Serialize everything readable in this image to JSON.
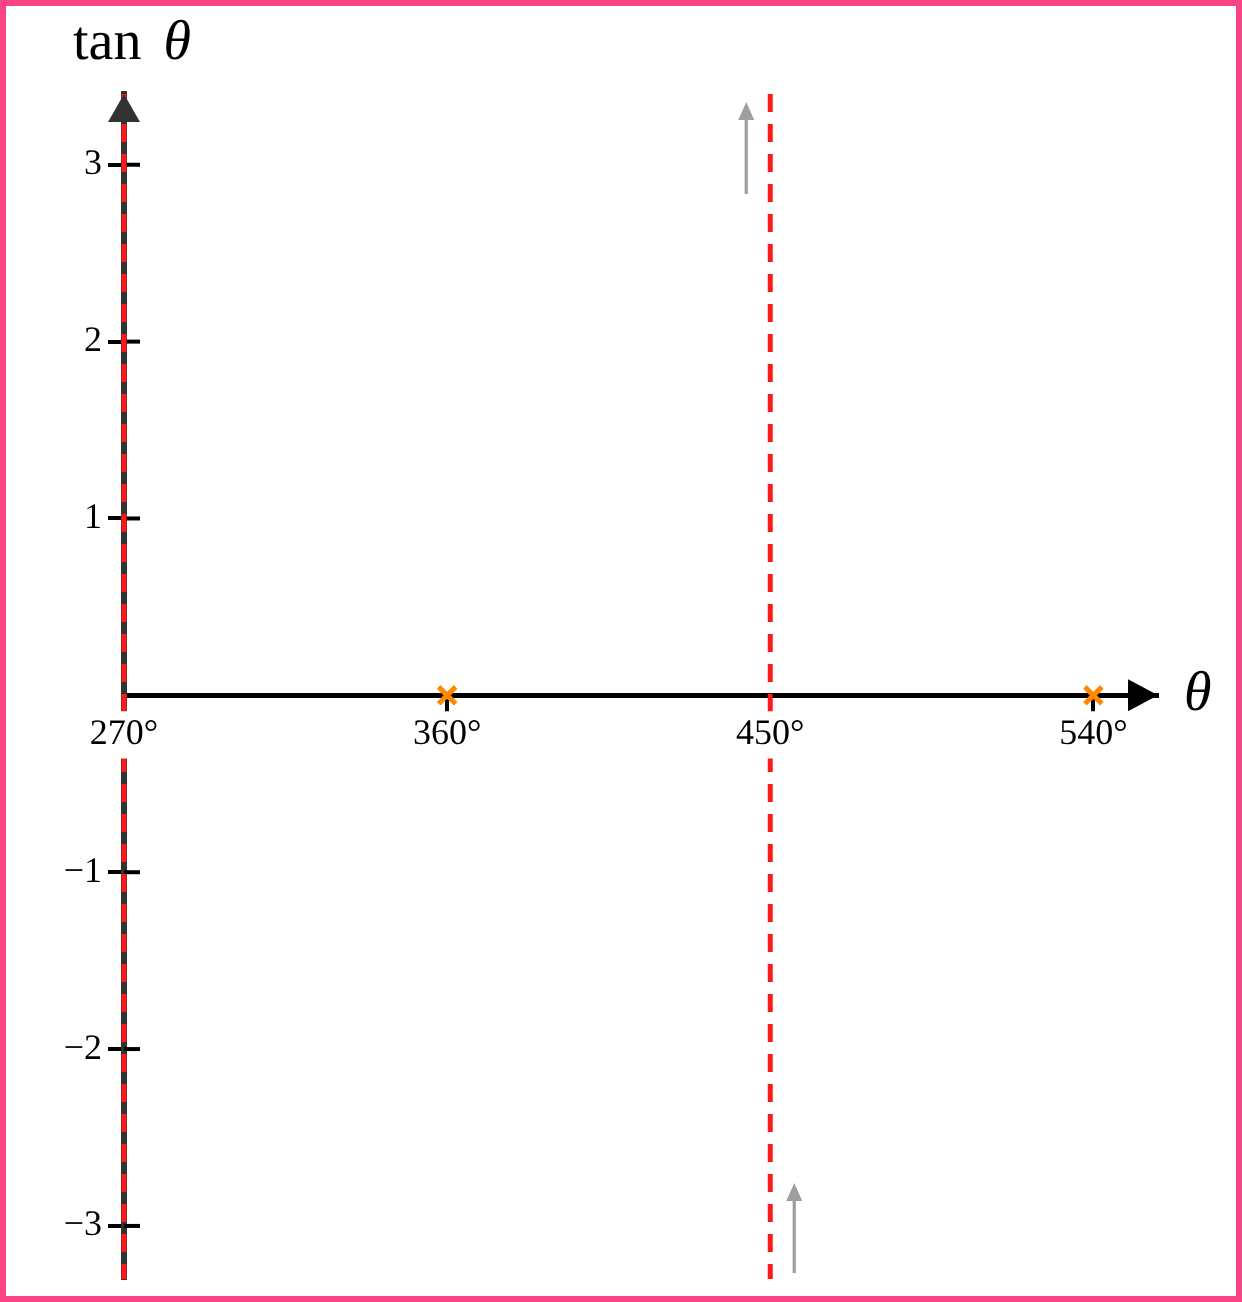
{
  "chart_data": {
    "type": "scatter",
    "xlabel": "θ",
    "ylabel": "tan θ",
    "x": [
      360,
      540
    ],
    "values": [
      0,
      0
    ],
    "color": "#ff8800",
    "marker": "cross",
    "xlim": [
      270,
      558
    ],
    "ylim": [
      -3.3,
      3.4
    ],
    "xticks": [
      {
        "value": 270,
        "label": "270°"
      },
      {
        "value": 360,
        "label": "360°"
      },
      {
        "value": 450,
        "label": "450°"
      },
      {
        "value": 540,
        "label": "540°"
      }
    ],
    "yticks": [
      {
        "value": -3,
        "label": "−3"
      },
      {
        "value": -2,
        "label": "−2"
      },
      {
        "value": -1,
        "label": "−1"
      },
      1,
      2,
      3
    ],
    "ref_lines": [
      {
        "axis": "x",
        "value": 270,
        "color": "#ff1a1a",
        "line_style": "dashed"
      },
      {
        "axis": "x",
        "value": 450,
        "color": "#ff1a1a",
        "line_style": "dashed"
      }
    ]
  }
}
